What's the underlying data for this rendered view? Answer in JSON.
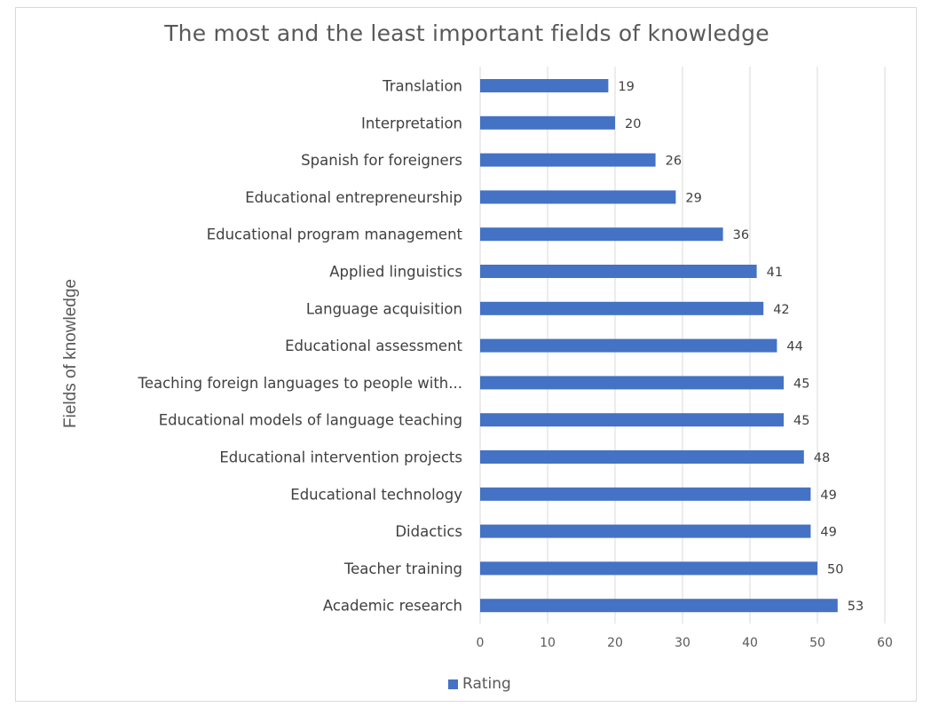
{
  "chart_data": {
    "type": "bar",
    "orientation": "horizontal",
    "title": "The most and the least important fields of knowledge",
    "xlabel": "",
    "ylabel": "Fields of knowledge",
    "xlim": [
      0,
      60
    ],
    "x_ticks": [
      "0",
      "10",
      "20",
      "30",
      "40",
      "50",
      "60"
    ],
    "grid": "vertical",
    "legend_position": "bottom",
    "bar_color": "#4472c4",
    "categories": [
      "Translation",
      "Interpretation",
      "Spanish for foreigners",
      "Educational entrepreneurship",
      "Educational program management",
      "Applied linguistics",
      "Language acquisition",
      "Educational assessment",
      "Teaching foreign languages to people with...",
      "Educational models of language teaching",
      "Educational intervention projects",
      "Educational technology",
      "Didactics",
      "Teacher training",
      "Academic research"
    ],
    "series": [
      {
        "name": "Rating",
        "values": [
          19,
          20,
          26,
          29,
          36,
          41,
          42,
          44,
          45,
          45,
          48,
          49,
          49,
          50,
          53
        ]
      }
    ]
  }
}
